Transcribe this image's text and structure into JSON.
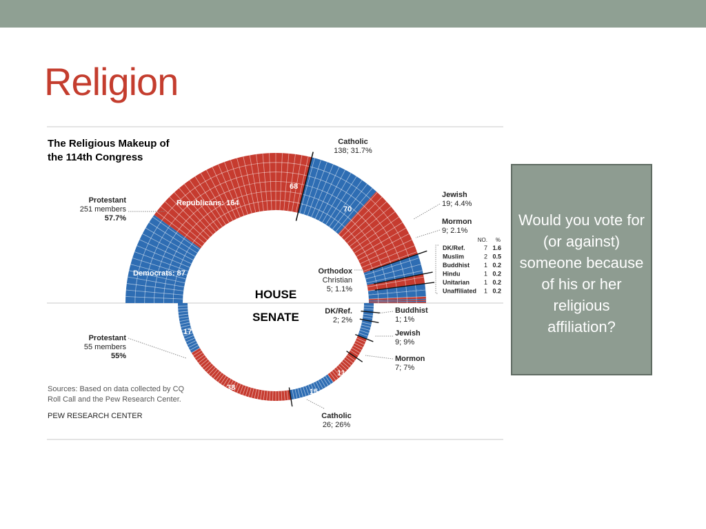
{
  "slide": {
    "title": "Religion",
    "callout": "Would you vote for (or against) someone because of his or her religious affiliation?"
  },
  "colors": {
    "republican": "#c63b2f",
    "democrat": "#2e6db3",
    "title": "#c43d2e",
    "topbar": "#8fa093",
    "callout_fill": "#8e9c91",
    "text": "#222222"
  },
  "chart_data": {
    "type": "donut",
    "title": "The Religious Makeup of the 114th Congress",
    "house": {
      "label": "HOUSE",
      "groups": [
        {
          "name": "Protestant",
          "count": 251,
          "count_text": "251 members",
          "pct_text": "57.7%",
          "label_lines": [
            "Protestant",
            "251 members",
            "57.7%"
          ],
          "dem": 87,
          "rep": 164
        },
        {
          "name": "Catholic",
          "count": 138,
          "label_lines": [
            "Catholic",
            "138; 31.7%"
          ],
          "dem": 68,
          "rep": 70
        },
        {
          "name": "Jewish",
          "count": 19,
          "label_lines": [
            "Jewish",
            "19; 4.4%"
          ]
        },
        {
          "name": "Mormon",
          "count": 9,
          "label_lines": [
            "Mormon",
            "9; 2.1%"
          ]
        },
        {
          "name": "Orthodox Christian",
          "count": 5,
          "label_lines": [
            "Orthodox",
            "Christian",
            "5; 1.1%"
          ]
        }
      ],
      "segment_labels": {
        "republicans": "Republicans: 164",
        "democrats": "Democrats: 87",
        "catholic_dem": "68",
        "catholic_rep": "70"
      },
      "table": {
        "headers": [
          "NO.",
          "%"
        ],
        "rows": [
          {
            "label": "DK/Ref.",
            "no": "7",
            "pct": "1.6"
          },
          {
            "label": "Muslim",
            "no": "2",
            "pct": "0.5"
          },
          {
            "label": "Buddhist",
            "no": "1",
            "pct": "0.2"
          },
          {
            "label": "Hindu",
            "no": "1",
            "pct": "0.2"
          },
          {
            "label": "Unitarian",
            "no": "1",
            "pct": "0.2"
          },
          {
            "label": "Unaffiliated",
            "no": "1",
            "pct": "0.2"
          }
        ]
      }
    },
    "senate": {
      "label": "SENATE",
      "groups": [
        {
          "name": "Protestant",
          "count": 55,
          "label_lines": [
            "Protestant",
            "55 members",
            "55%"
          ],
          "dem": 17,
          "rep": 38
        },
        {
          "name": "Catholic",
          "count": 26,
          "label_lines": [
            "Catholic",
            "26; 26%"
          ],
          "dem": 15,
          "rep": 11
        },
        {
          "name": "Mormon",
          "count": 7,
          "label_lines": [
            "Mormon",
            "7; 7%"
          ]
        },
        {
          "name": "Jewish",
          "count": 9,
          "label_lines": [
            "Jewish",
            "9; 9%"
          ]
        },
        {
          "name": "Buddhist",
          "count": 1,
          "label_lines": [
            "Buddhist",
            "1; 1%"
          ]
        },
        {
          "name": "DK/Ref.",
          "count": 2,
          "label_lines": [
            "DK/Ref.",
            "2; 2%"
          ]
        }
      ],
      "segment_labels": {
        "protestant_dem": "17",
        "protestant_rep": "38",
        "catholic_dem": "15",
        "catholic_rep": "11"
      }
    },
    "sources": [
      "Sources: Based on data collected by CQ",
      "Roll Call and the Pew Research Center."
    ],
    "credit": "PEW RESEARCH CENTER"
  }
}
